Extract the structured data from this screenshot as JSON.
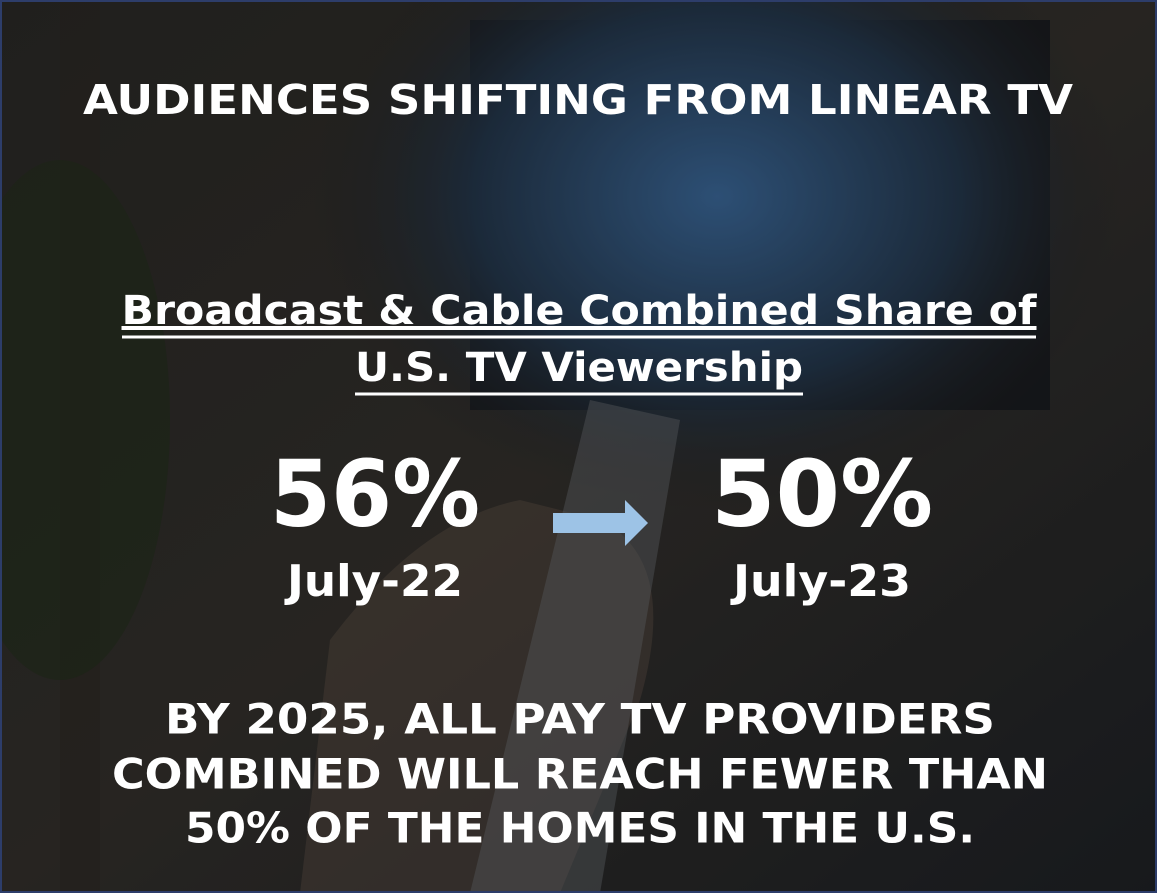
{
  "title": "AUDIENCES SHIFTING FROM LINEAR TV",
  "subtitle": [
    "Broadcast & Cable Combined Share of",
    "U.S. TV Viewership"
  ],
  "stats": [
    {
      "value": "56%",
      "label": "July-22"
    },
    {
      "value": "50%",
      "label": "July-23"
    }
  ],
  "footer": [
    "BY 2025, ALL PAY TV PROVIDERS",
    "COMBINED WILL REACH FEWER THAN",
    "50% OF THE HOMES IN THE U.S."
  ]
}
